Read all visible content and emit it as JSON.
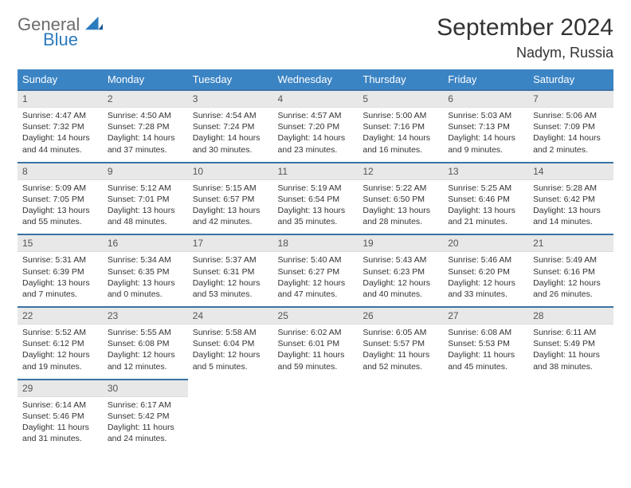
{
  "brand": {
    "word1": "General",
    "word2": "Blue"
  },
  "title": "September 2024",
  "location": "Nadym, Russia",
  "colors": {
    "header_bg": "#3b84c4",
    "header_text": "#ffffff",
    "row_border": "#3b72a5",
    "daynum_bg": "#e8e8e8",
    "daynum_text": "#555555",
    "body_text": "#333333",
    "logo_gray": "#6b6b6b",
    "logo_blue": "#2b7bbf"
  },
  "days_of_week": [
    "Sunday",
    "Monday",
    "Tuesday",
    "Wednesday",
    "Thursday",
    "Friday",
    "Saturday"
  ],
  "weeks": [
    [
      {
        "n": "1",
        "sr": "Sunrise: 4:47 AM",
        "ss": "Sunset: 7:32 PM",
        "dl": "Daylight: 14 hours and 44 minutes."
      },
      {
        "n": "2",
        "sr": "Sunrise: 4:50 AM",
        "ss": "Sunset: 7:28 PM",
        "dl": "Daylight: 14 hours and 37 minutes."
      },
      {
        "n": "3",
        "sr": "Sunrise: 4:54 AM",
        "ss": "Sunset: 7:24 PM",
        "dl": "Daylight: 14 hours and 30 minutes."
      },
      {
        "n": "4",
        "sr": "Sunrise: 4:57 AM",
        "ss": "Sunset: 7:20 PM",
        "dl": "Daylight: 14 hours and 23 minutes."
      },
      {
        "n": "5",
        "sr": "Sunrise: 5:00 AM",
        "ss": "Sunset: 7:16 PM",
        "dl": "Daylight: 14 hours and 16 minutes."
      },
      {
        "n": "6",
        "sr": "Sunrise: 5:03 AM",
        "ss": "Sunset: 7:13 PM",
        "dl": "Daylight: 14 hours and 9 minutes."
      },
      {
        "n": "7",
        "sr": "Sunrise: 5:06 AM",
        "ss": "Sunset: 7:09 PM",
        "dl": "Daylight: 14 hours and 2 minutes."
      }
    ],
    [
      {
        "n": "8",
        "sr": "Sunrise: 5:09 AM",
        "ss": "Sunset: 7:05 PM",
        "dl": "Daylight: 13 hours and 55 minutes."
      },
      {
        "n": "9",
        "sr": "Sunrise: 5:12 AM",
        "ss": "Sunset: 7:01 PM",
        "dl": "Daylight: 13 hours and 48 minutes."
      },
      {
        "n": "10",
        "sr": "Sunrise: 5:15 AM",
        "ss": "Sunset: 6:57 PM",
        "dl": "Daylight: 13 hours and 42 minutes."
      },
      {
        "n": "11",
        "sr": "Sunrise: 5:19 AM",
        "ss": "Sunset: 6:54 PM",
        "dl": "Daylight: 13 hours and 35 minutes."
      },
      {
        "n": "12",
        "sr": "Sunrise: 5:22 AM",
        "ss": "Sunset: 6:50 PM",
        "dl": "Daylight: 13 hours and 28 minutes."
      },
      {
        "n": "13",
        "sr": "Sunrise: 5:25 AM",
        "ss": "Sunset: 6:46 PM",
        "dl": "Daylight: 13 hours and 21 minutes."
      },
      {
        "n": "14",
        "sr": "Sunrise: 5:28 AM",
        "ss": "Sunset: 6:42 PM",
        "dl": "Daylight: 13 hours and 14 minutes."
      }
    ],
    [
      {
        "n": "15",
        "sr": "Sunrise: 5:31 AM",
        "ss": "Sunset: 6:39 PM",
        "dl": "Daylight: 13 hours and 7 minutes."
      },
      {
        "n": "16",
        "sr": "Sunrise: 5:34 AM",
        "ss": "Sunset: 6:35 PM",
        "dl": "Daylight: 13 hours and 0 minutes."
      },
      {
        "n": "17",
        "sr": "Sunrise: 5:37 AM",
        "ss": "Sunset: 6:31 PM",
        "dl": "Daylight: 12 hours and 53 minutes."
      },
      {
        "n": "18",
        "sr": "Sunrise: 5:40 AM",
        "ss": "Sunset: 6:27 PM",
        "dl": "Daylight: 12 hours and 47 minutes."
      },
      {
        "n": "19",
        "sr": "Sunrise: 5:43 AM",
        "ss": "Sunset: 6:23 PM",
        "dl": "Daylight: 12 hours and 40 minutes."
      },
      {
        "n": "20",
        "sr": "Sunrise: 5:46 AM",
        "ss": "Sunset: 6:20 PM",
        "dl": "Daylight: 12 hours and 33 minutes."
      },
      {
        "n": "21",
        "sr": "Sunrise: 5:49 AM",
        "ss": "Sunset: 6:16 PM",
        "dl": "Daylight: 12 hours and 26 minutes."
      }
    ],
    [
      {
        "n": "22",
        "sr": "Sunrise: 5:52 AM",
        "ss": "Sunset: 6:12 PM",
        "dl": "Daylight: 12 hours and 19 minutes."
      },
      {
        "n": "23",
        "sr": "Sunrise: 5:55 AM",
        "ss": "Sunset: 6:08 PM",
        "dl": "Daylight: 12 hours and 12 minutes."
      },
      {
        "n": "24",
        "sr": "Sunrise: 5:58 AM",
        "ss": "Sunset: 6:04 PM",
        "dl": "Daylight: 12 hours and 5 minutes."
      },
      {
        "n": "25",
        "sr": "Sunrise: 6:02 AM",
        "ss": "Sunset: 6:01 PM",
        "dl": "Daylight: 11 hours and 59 minutes."
      },
      {
        "n": "26",
        "sr": "Sunrise: 6:05 AM",
        "ss": "Sunset: 5:57 PM",
        "dl": "Daylight: 11 hours and 52 minutes."
      },
      {
        "n": "27",
        "sr": "Sunrise: 6:08 AM",
        "ss": "Sunset: 5:53 PM",
        "dl": "Daylight: 11 hours and 45 minutes."
      },
      {
        "n": "28",
        "sr": "Sunrise: 6:11 AM",
        "ss": "Sunset: 5:49 PM",
        "dl": "Daylight: 11 hours and 38 minutes."
      }
    ],
    [
      {
        "n": "29",
        "sr": "Sunrise: 6:14 AM",
        "ss": "Sunset: 5:46 PM",
        "dl": "Daylight: 11 hours and 31 minutes."
      },
      {
        "n": "30",
        "sr": "Sunrise: 6:17 AM",
        "ss": "Sunset: 5:42 PM",
        "dl": "Daylight: 11 hours and 24 minutes."
      },
      null,
      null,
      null,
      null,
      null
    ]
  ]
}
